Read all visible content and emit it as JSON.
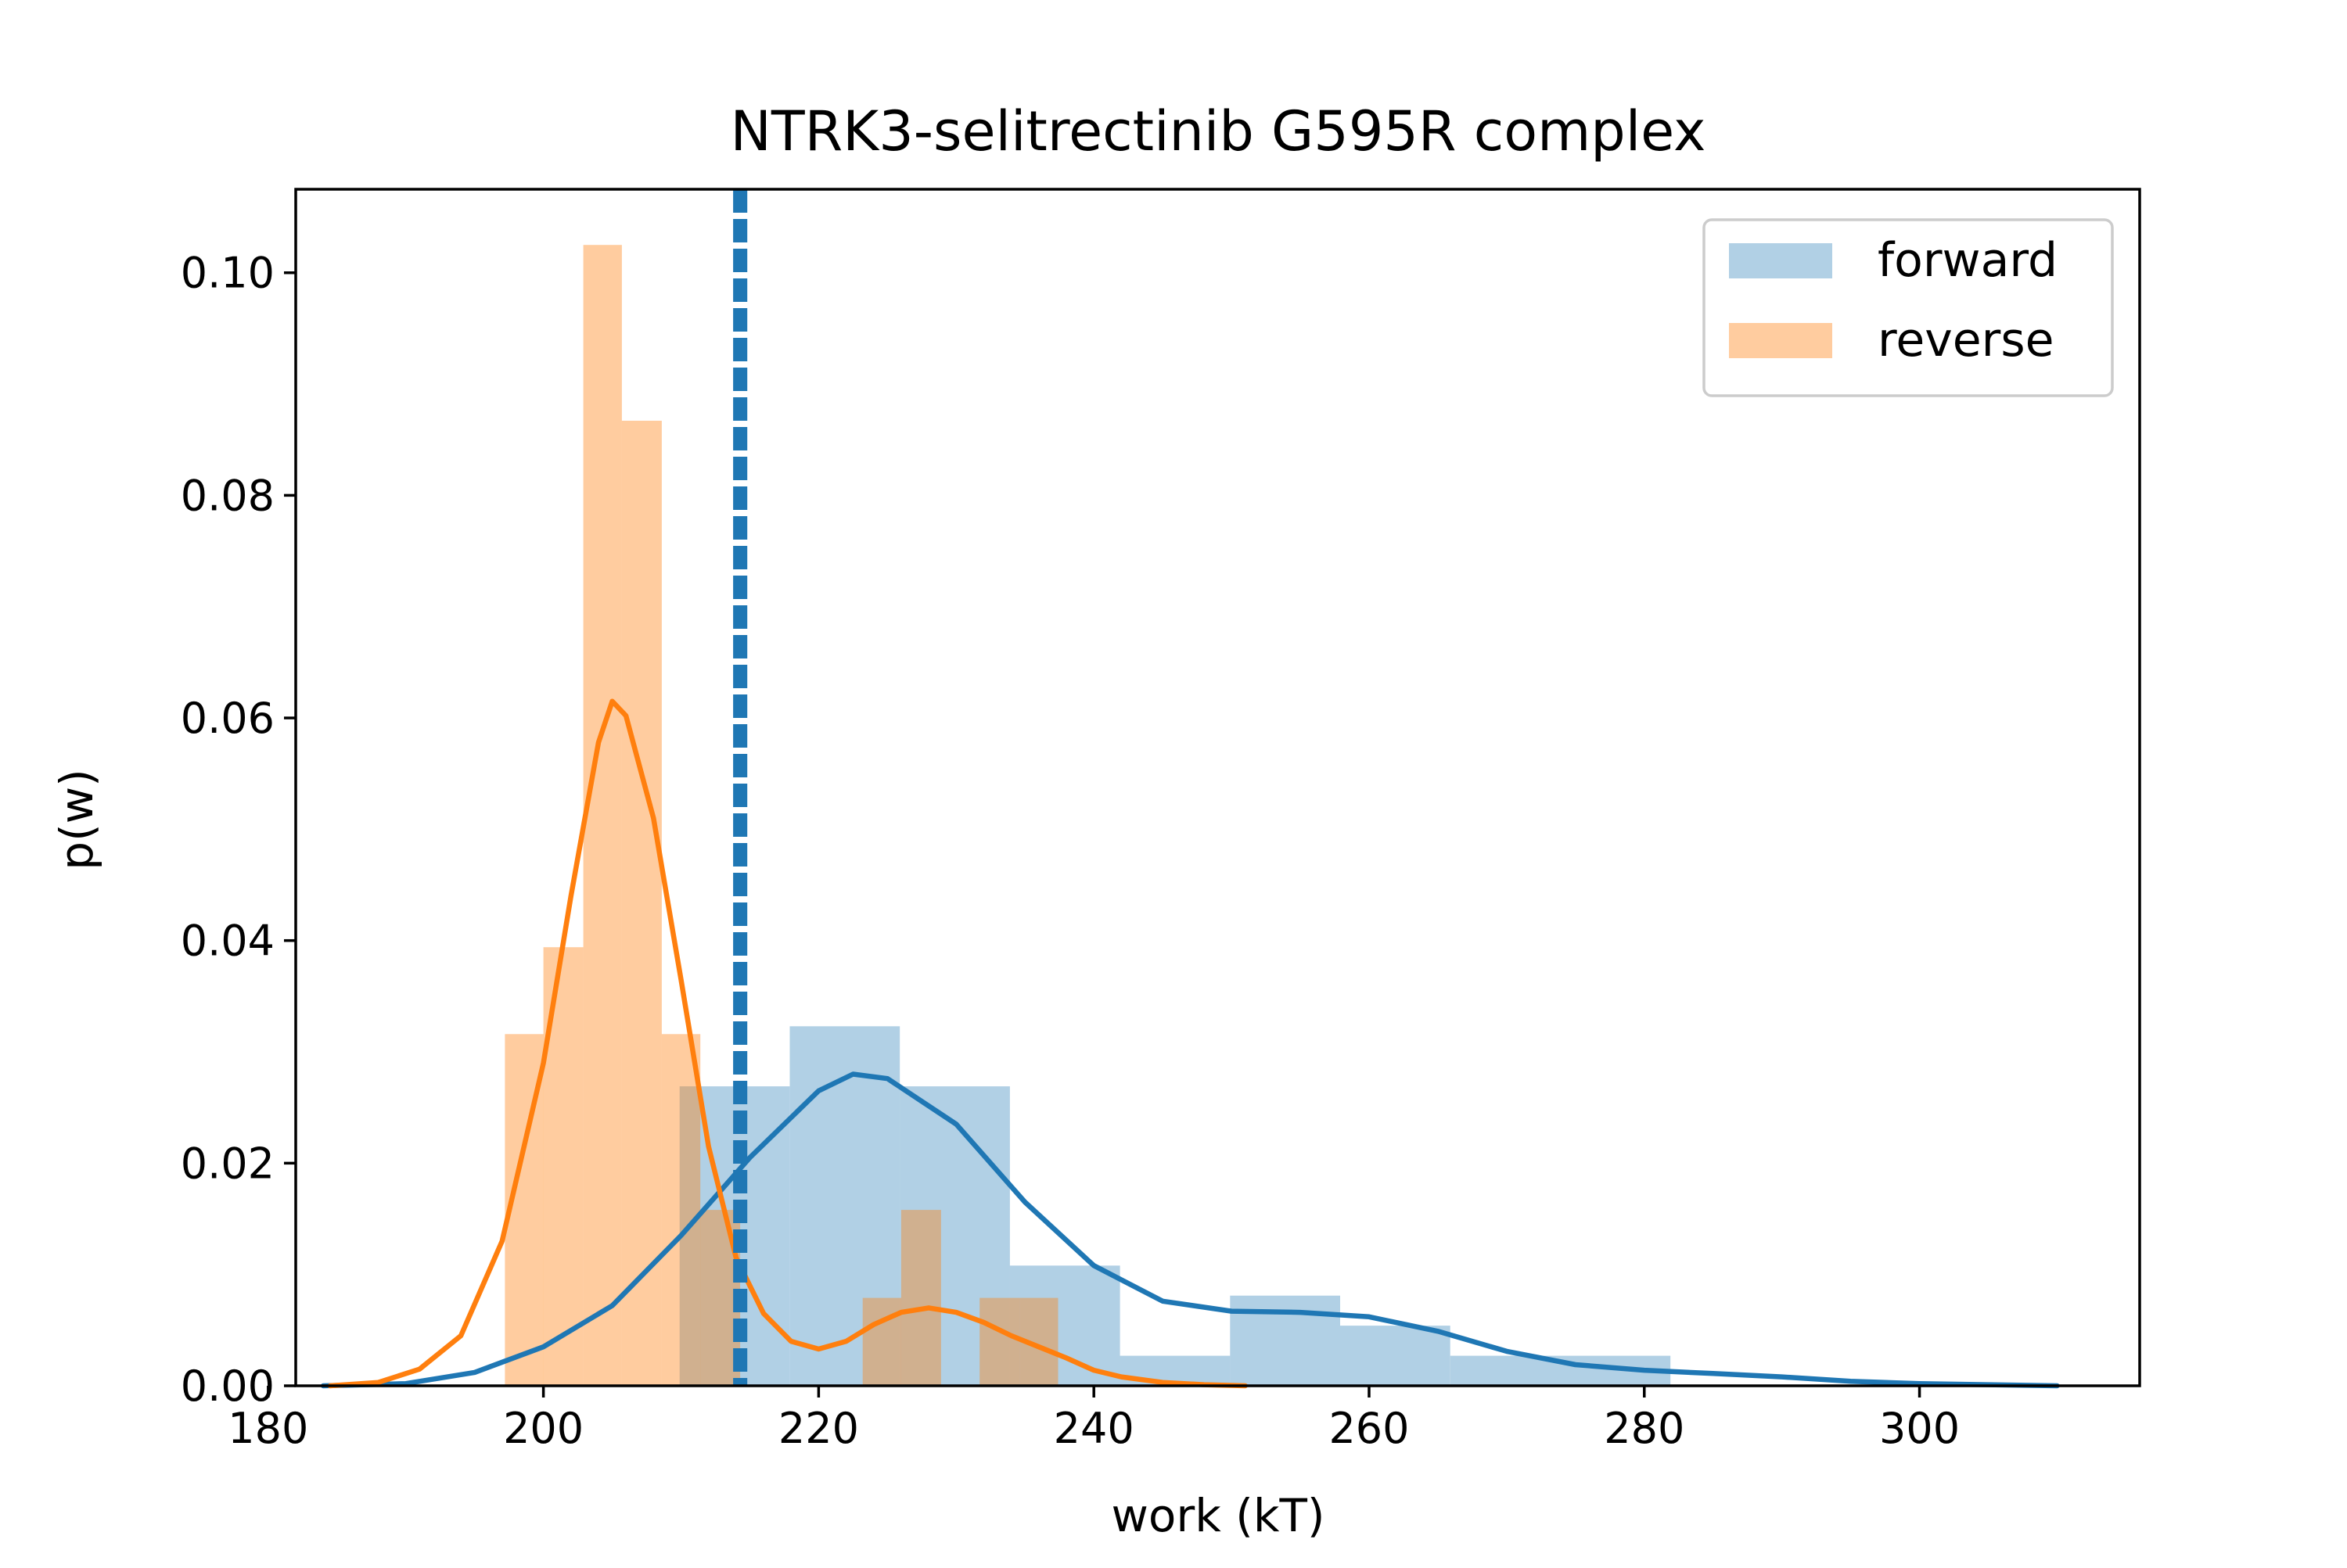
{
  "chart_data": {
    "type": "histogram",
    "title": "NTRK3-selitrectinib G595R complex",
    "xlabel": "work (kT)",
    "ylabel": "p(w)",
    "xlim": [
      182,
      316
    ],
    "ylim": [
      0,
      0.1075
    ],
    "x_ticks": [
      180,
      200,
      220,
      240,
      260,
      280,
      300
    ],
    "y_ticks": [
      0.0,
      0.02,
      0.04,
      0.06,
      0.08,
      0.1
    ],
    "x_tick_labels": [
      "180",
      "200",
      "220",
      "240",
      "260",
      "280",
      "300"
    ],
    "y_tick_labels": [
      "0.00",
      "0.02",
      "0.04",
      "0.06",
      "0.08",
      "0.10"
    ],
    "grid": false,
    "legend_position": "top-right",
    "series": [
      {
        "name": "forward",
        "color": "#1f77b4",
        "hist_opacity": 0.35,
        "bins": [
          {
            "x0": 209.9,
            "x1": 217.9,
            "density": 0.0269
          },
          {
            "x0": 217.9,
            "x1": 225.9,
            "density": 0.0323
          },
          {
            "x0": 225.9,
            "x1": 233.9,
            "density": 0.0269
          },
          {
            "x0": 233.9,
            "x1": 241.9,
            "density": 0.0108
          },
          {
            "x0": 241.9,
            "x1": 249.9,
            "density": 0.0027
          },
          {
            "x0": 249.9,
            "x1": 257.9,
            "density": 0.0081
          },
          {
            "x0": 257.9,
            "x1": 265.9,
            "density": 0.0054
          },
          {
            "x0": 265.9,
            "x1": 273.9,
            "density": 0.0027
          },
          {
            "x0": 273.9,
            "x1": 281.9,
            "density": 0.0027
          }
        ],
        "kde": {
          "x": [
            184,
            190,
            195,
            200,
            205,
            210,
            215,
            220,
            222.5,
            225,
            230,
            235,
            240,
            245,
            250,
            255,
            260,
            265,
            270,
            275,
            280,
            285,
            290,
            295,
            300,
            305,
            310
          ],
          "y": [
            0.0,
            0.0002,
            0.0012,
            0.0035,
            0.0072,
            0.0135,
            0.0205,
            0.0265,
            0.028,
            0.0276,
            0.0235,
            0.0165,
            0.0108,
            0.0076,
            0.0067,
            0.0066,
            0.0062,
            0.0049,
            0.0031,
            0.0019,
            0.0014,
            0.0011,
            0.0008,
            0.0004,
            0.0002,
            0.0001,
            0.0
          ]
        },
        "vline": 214.5
      },
      {
        "name": "reverse",
        "color": "#ff7f0e",
        "hist_opacity": 0.4,
        "bins": [
          {
            "x0": 197.2,
            "x1": 200.0,
            "density": 0.0316
          },
          {
            "x0": 200.0,
            "x1": 202.9,
            "density": 0.0394
          },
          {
            "x0": 202.9,
            "x1": 205.7,
            "density": 0.1025
          },
          {
            "x0": 205.7,
            "x1": 208.6,
            "density": 0.0867
          },
          {
            "x0": 208.6,
            "x1": 211.4,
            "density": 0.0316
          },
          {
            "x0": 211.4,
            "x1": 214.3,
            "density": 0.0158
          },
          {
            "x0": 223.2,
            "x1": 226.0,
            "density": 0.0079
          },
          {
            "x0": 226.0,
            "x1": 228.9,
            "density": 0.0158
          },
          {
            "x0": 231.7,
            "x1": 234.6,
            "density": 0.0079
          },
          {
            "x0": 234.6,
            "x1": 237.4,
            "density": 0.0079
          }
        ],
        "kde": {
          "x": [
            184.5,
            188,
            191,
            194,
            197,
            200,
            202,
            204,
            205,
            206,
            208,
            210,
            212,
            214,
            216,
            218,
            220,
            222,
            224,
            226,
            228,
            230,
            232,
            234,
            236,
            238,
            240,
            242,
            245,
            248,
            251
          ],
          "y": [
            0.0,
            0.0003,
            0.0015,
            0.0045,
            0.013,
            0.029,
            0.044,
            0.0578,
            0.0615,
            0.0602,
            0.051,
            0.0365,
            0.0215,
            0.0115,
            0.0065,
            0.004,
            0.0033,
            0.004,
            0.0055,
            0.0066,
            0.007,
            0.0066,
            0.0057,
            0.0045,
            0.0035,
            0.0025,
            0.0014,
            0.0008,
            0.0003,
            0.0001,
            0.0
          ]
        },
        "vline": 214.1
      }
    ]
  }
}
